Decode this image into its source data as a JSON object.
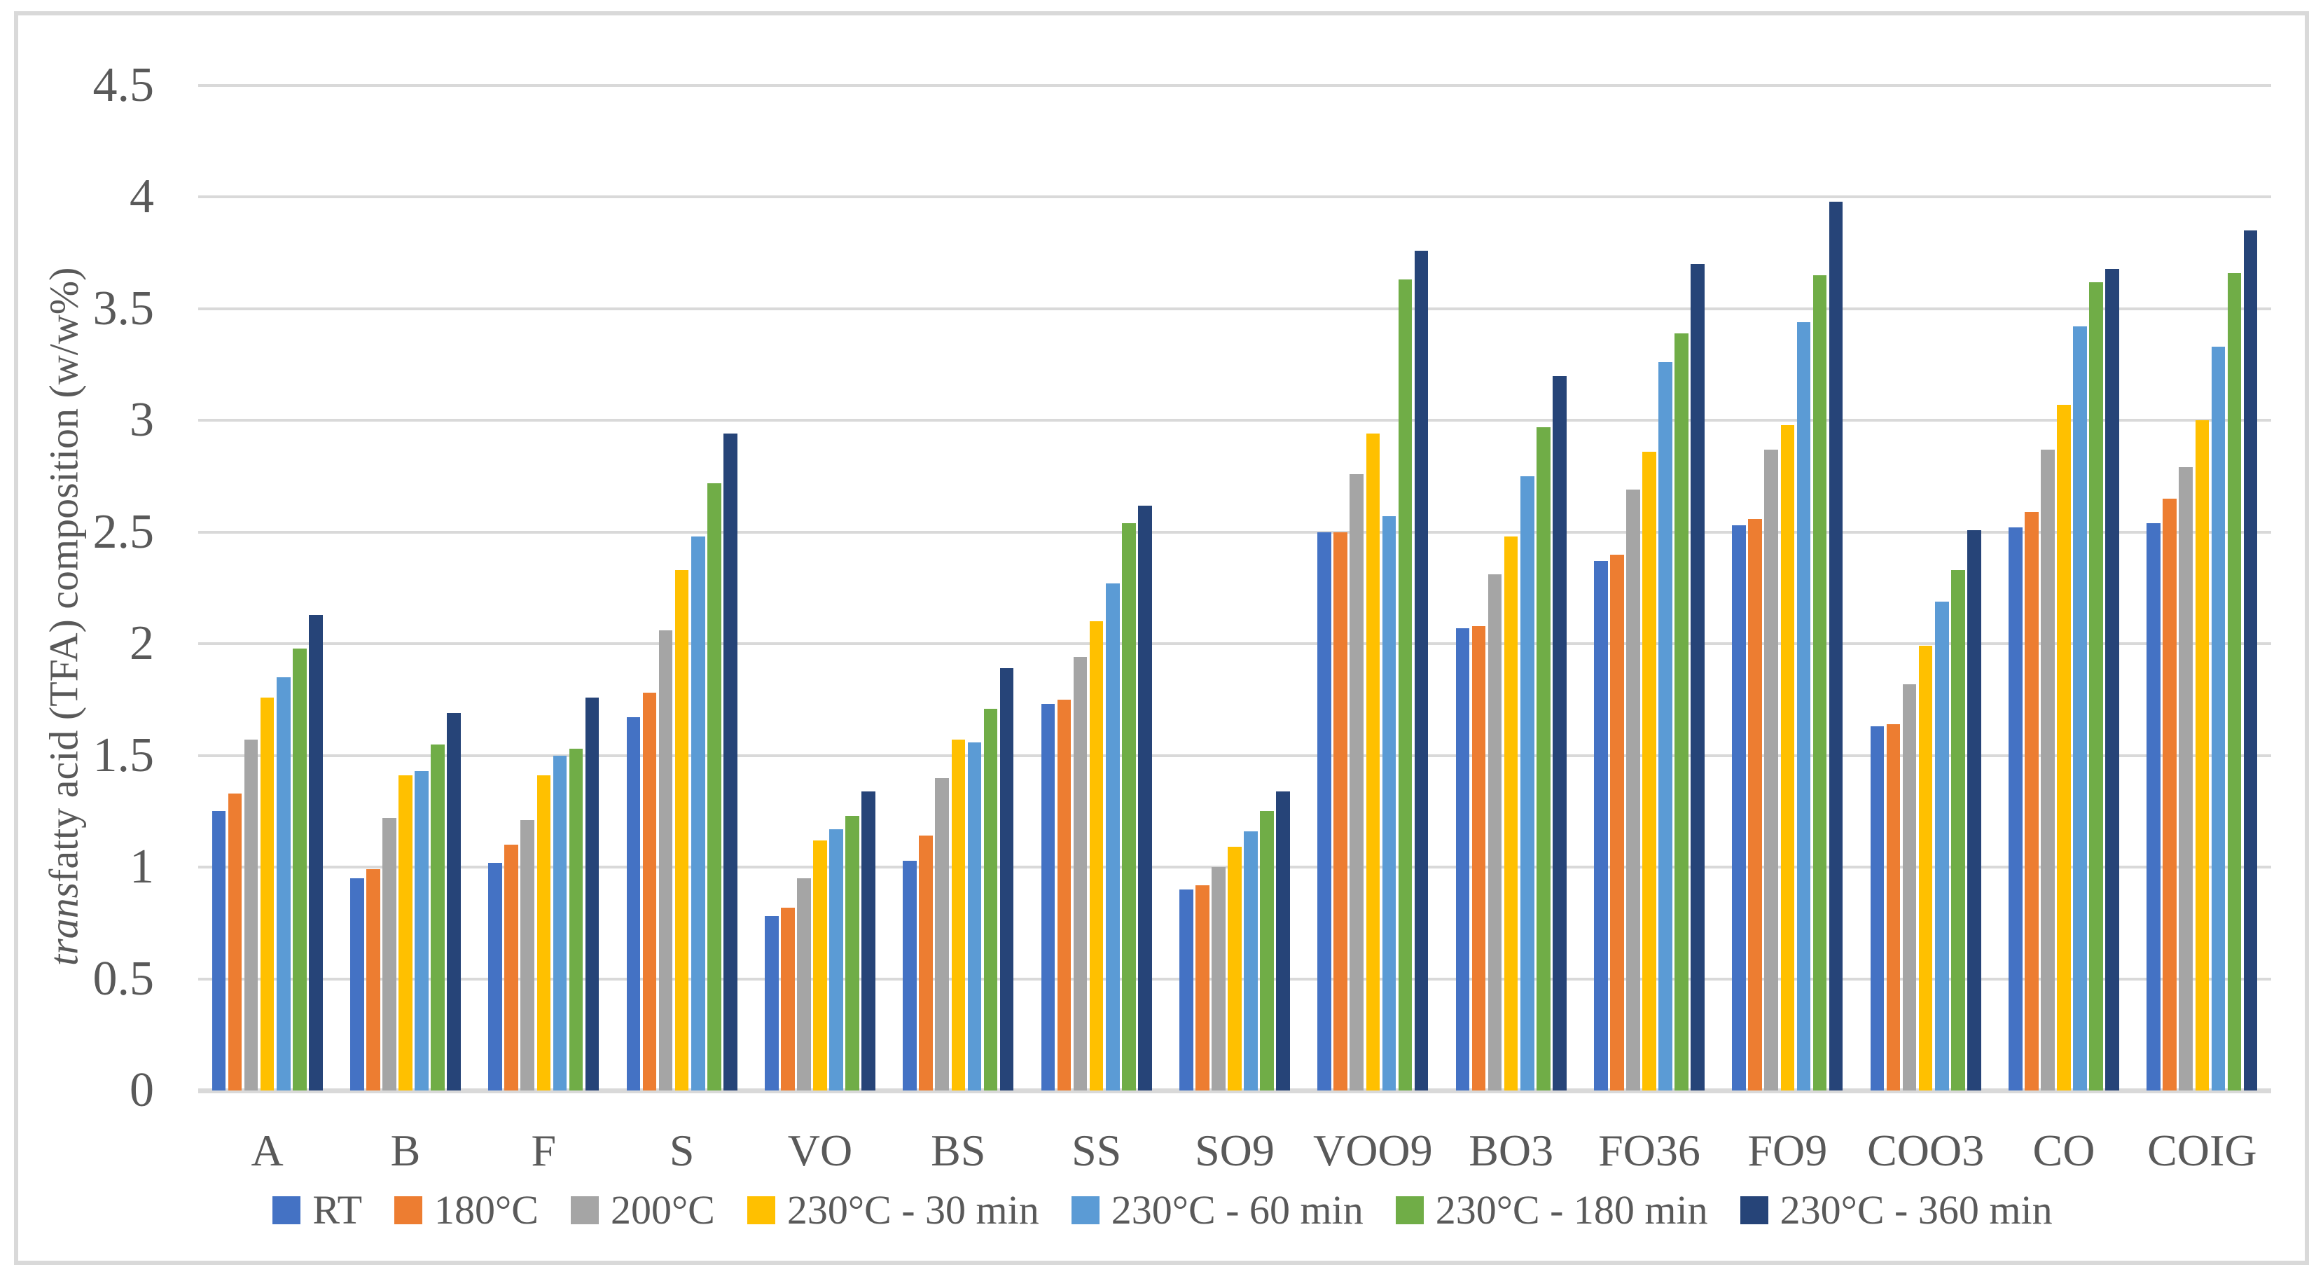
{
  "figure": {
    "background": "#FFFFFF",
    "border_color": "#D9D9D9",
    "gridline_color": "#D9D9D9",
    "text_color": "#595959"
  },
  "y_axis": {
    "title_italic": "trans",
    "title_rest": " fatty acid (TFA) composition (w/w%)",
    "tick_labels": [
      "0",
      "0.5",
      "1",
      "1.5",
      "2",
      "2.5",
      "3",
      "3.5",
      "4",
      "4.5"
    ]
  },
  "chart_data": {
    "type": "bar",
    "title": "",
    "xlabel": "",
    "ylabel": "trans fatty acid (TFA) composition (w/w%)",
    "ylim": [
      0,
      4.5
    ],
    "ytick_step": 0.5,
    "grid": true,
    "legend_position": "bottom",
    "categories": [
      "A",
      "B",
      "F",
      "S",
      "VO",
      "BS",
      "SS",
      "SO9",
      "VOO9",
      "BO3",
      "FO36",
      "FO9",
      "COO3",
      "CO",
      "COIG"
    ],
    "series": [
      {
        "name": "RT",
        "color": "#4472C4",
        "values": [
          1.25,
          0.95,
          1.02,
          1.67,
          0.78,
          1.03,
          1.73,
          0.9,
          2.5,
          2.07,
          2.37,
          2.53,
          1.63,
          2.52,
          2.54
        ]
      },
      {
        "name": "180°C",
        "color": "#ED7D31",
        "values": [
          1.33,
          0.99,
          1.1,
          1.78,
          0.82,
          1.14,
          1.75,
          0.92,
          2.5,
          2.08,
          2.4,
          2.56,
          1.64,
          2.59,
          2.65
        ]
      },
      {
        "name": "200°C",
        "color": "#A5A5A5",
        "values": [
          1.57,
          1.22,
          1.21,
          2.06,
          0.95,
          1.4,
          1.94,
          1.0,
          2.76,
          2.31,
          2.69,
          2.87,
          1.82,
          2.87,
          2.79
        ]
      },
      {
        "name": "230°C - 30 min",
        "color": "#FFC000",
        "values": [
          1.76,
          1.41,
          1.41,
          2.33,
          1.12,
          1.57,
          2.1,
          1.09,
          2.94,
          2.48,
          2.86,
          2.98,
          1.99,
          3.07,
          3.0
        ]
      },
      {
        "name": "230°C - 60 min",
        "color": "#5B9BD5",
        "values": [
          1.85,
          1.43,
          1.5,
          2.48,
          1.17,
          1.56,
          2.27,
          1.16,
          2.57,
          2.75,
          3.26,
          3.44,
          2.19,
          3.42,
          3.33
        ]
      },
      {
        "name": "230°C - 180 min",
        "color": "#70AD47",
        "values": [
          1.98,
          1.55,
          1.53,
          2.72,
          1.23,
          1.71,
          2.54,
          1.25,
          3.63,
          2.97,
          3.39,
          3.65,
          2.33,
          3.62,
          3.66
        ]
      },
      {
        "name": "230°C - 360 min",
        "color": "#264478",
        "values": [
          2.13,
          1.69,
          1.76,
          2.94,
          1.34,
          1.89,
          2.62,
          1.34,
          3.76,
          3.2,
          3.7,
          3.98,
          2.51,
          3.68,
          3.85
        ]
      }
    ]
  }
}
